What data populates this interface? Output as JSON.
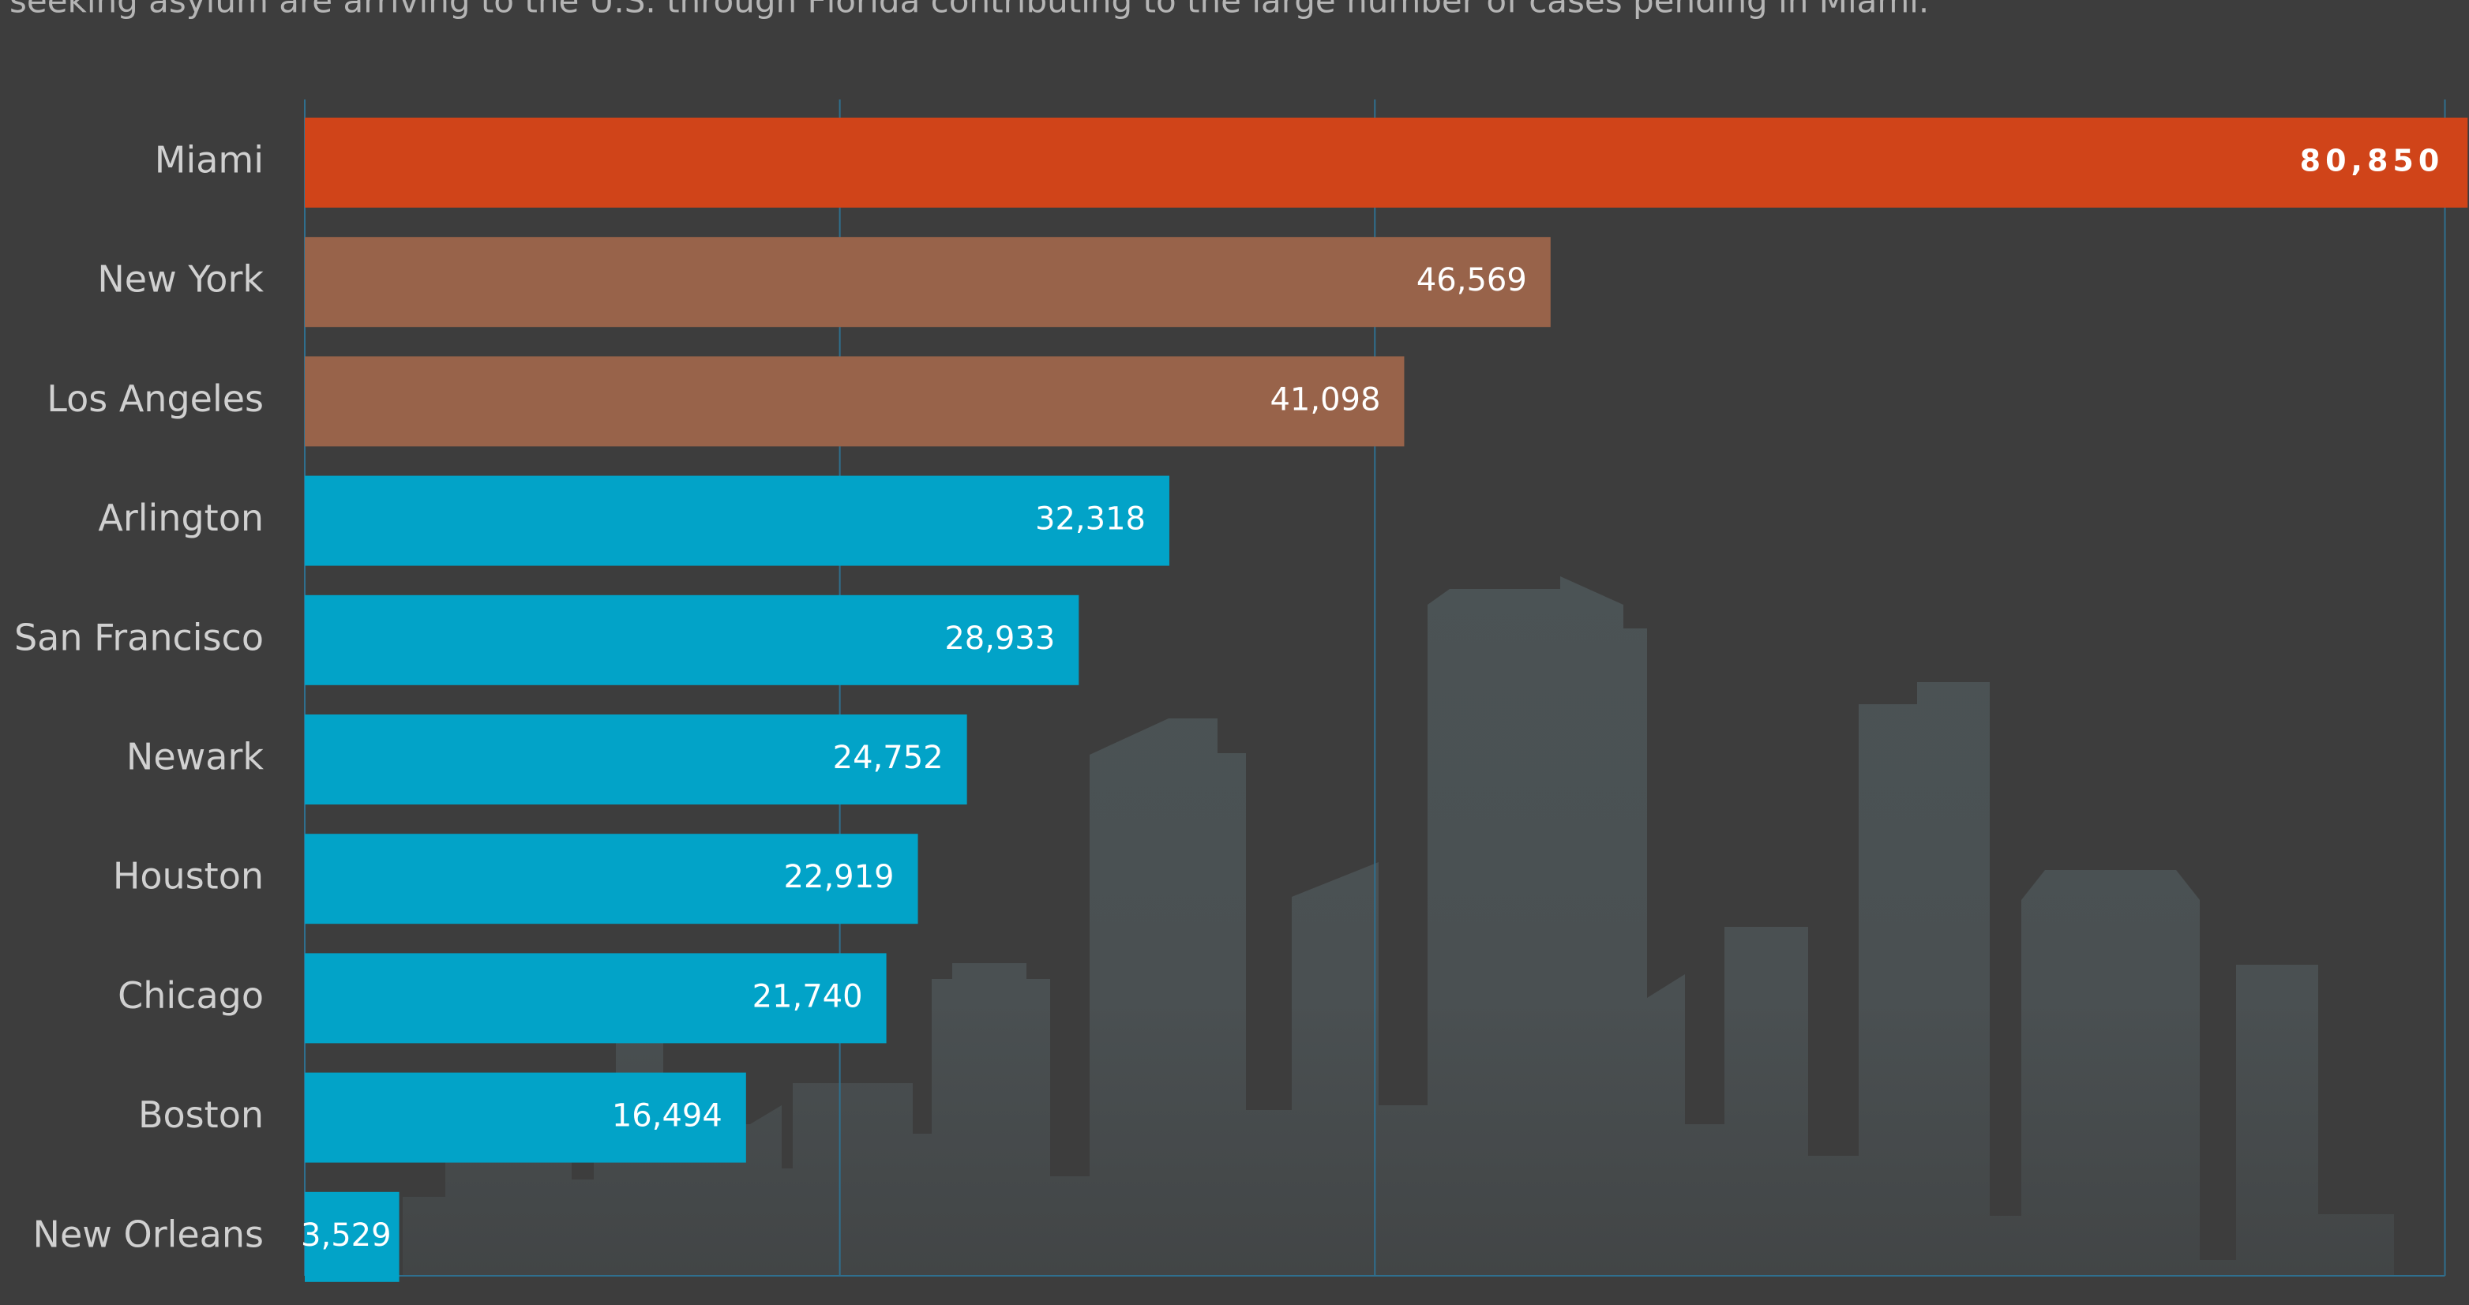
{
  "chart_data": {
    "type": "bar",
    "orientation": "horizontal",
    "subtitle": "seeking asylum are arriving to the U.S. through Florida contributing to the large number of cases pending in Miami.",
    "categories": [
      "Miami",
      "New York",
      "Los Angeles",
      "Arlington",
      "San Francisco",
      "Newark",
      "Houston",
      "Chicago",
      "Boston",
      "New Orleans"
    ],
    "values": [
      80850,
      46569,
      41098,
      32318,
      28933,
      24752,
      22919,
      21740,
      16494,
      3529
    ],
    "value_labels": [
      "80,850",
      "46,569",
      "41,098",
      "32,318",
      "28,933",
      "24,752",
      "22,919",
      "21,740",
      "16,494",
      "3,529"
    ],
    "colors": [
      "#d04419",
      "#98634a",
      "#98634a",
      "#02a3c8",
      "#02a3c8",
      "#02a3c8",
      "#02a3c8",
      "#02a3c8",
      "#02a3c8",
      "#02a3c8"
    ],
    "xlim": [
      0,
      80900
    ],
    "xticks": [
      0,
      20000,
      40000,
      80000
    ],
    "grid": true
  }
}
